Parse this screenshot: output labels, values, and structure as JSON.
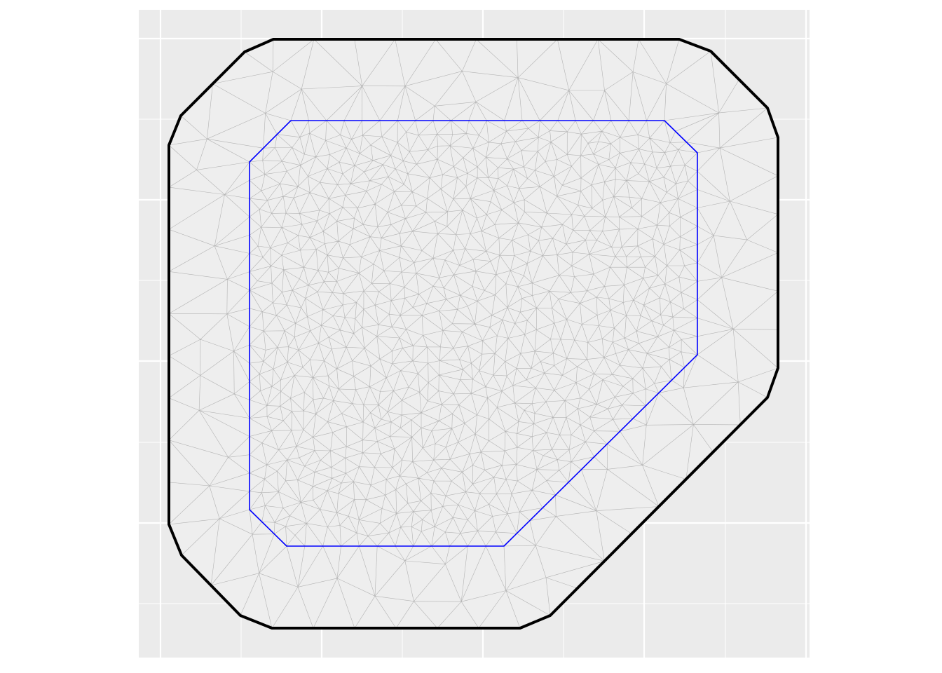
{
  "figure": {
    "description_type": "triangulated mesh with outer and inner boundary",
    "colors": {
      "panel_background": "#ebebeb",
      "grid_major": "#ffffff",
      "mesh_edges": "#b3b3b3",
      "mesh_fill": "#eeeeee",
      "outer_boundary": "#000000",
      "inner_boundary": "#0000ff"
    },
    "grid": true,
    "axis_labels_shown": false,
    "legend_shown": false
  }
}
